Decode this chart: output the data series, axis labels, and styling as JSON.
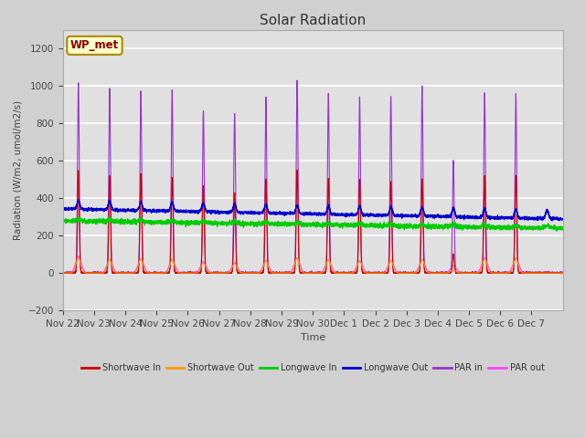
{
  "title": "Solar Radiation",
  "ylabel": "Radiation (W/m2, umol/m2/s)",
  "xlabel": "Time",
  "ylim": [
    -200,
    1300
  ],
  "yticks": [
    -200,
    0,
    200,
    400,
    600,
    800,
    1000,
    1200
  ],
  "fig_bg": "#d0d0d0",
  "plot_bg": "#e0e0e0",
  "label_box": "WP_met",
  "n_days": 16,
  "x_labels": [
    "Nov 22",
    "Nov 23",
    "Nov 24",
    "Nov 25",
    "Nov 26",
    "Nov 27",
    "Nov 28",
    "Nov 29",
    "Nov 30",
    "Dec 1",
    "Dec 2",
    "Dec 3",
    "Dec 4",
    "Dec 5",
    "Dec 6",
    "Dec 7"
  ],
  "series": {
    "shortwave_in": {
      "color": "#cc0000",
      "label": "Shortwave In"
    },
    "shortwave_out": {
      "color": "#ff9900",
      "label": "Shortwave Out"
    },
    "longwave_in": {
      "color": "#00cc00",
      "label": "Longwave In"
    },
    "longwave_out": {
      "color": "#0000cc",
      "label": "Longwave Out"
    },
    "par_in": {
      "color": "#9933cc",
      "label": "PAR in"
    },
    "par_out": {
      "color": "#ff44ff",
      "label": "PAR out"
    }
  },
  "peaks_par_in": [
    1020,
    990,
    970,
    980,
    870,
    850,
    940,
    1030,
    960,
    940,
    940,
    995,
    600,
    960,
    960,
    0
  ],
  "peaks_sw_in": [
    550,
    520,
    530,
    510,
    465,
    420,
    500,
    550,
    505,
    500,
    490,
    500,
    100,
    520,
    520,
    0
  ],
  "peaks_par_out": [
    90,
    70,
    75,
    70,
    60,
    55,
    65,
    80,
    70,
    65,
    65,
    70,
    40,
    80,
    80,
    0
  ],
  "peaks_sw_out": [
    80,
    70,
    75,
    70,
    55,
    50,
    65,
    80,
    70,
    65,
    65,
    70,
    15,
    75,
    75,
    0
  ]
}
